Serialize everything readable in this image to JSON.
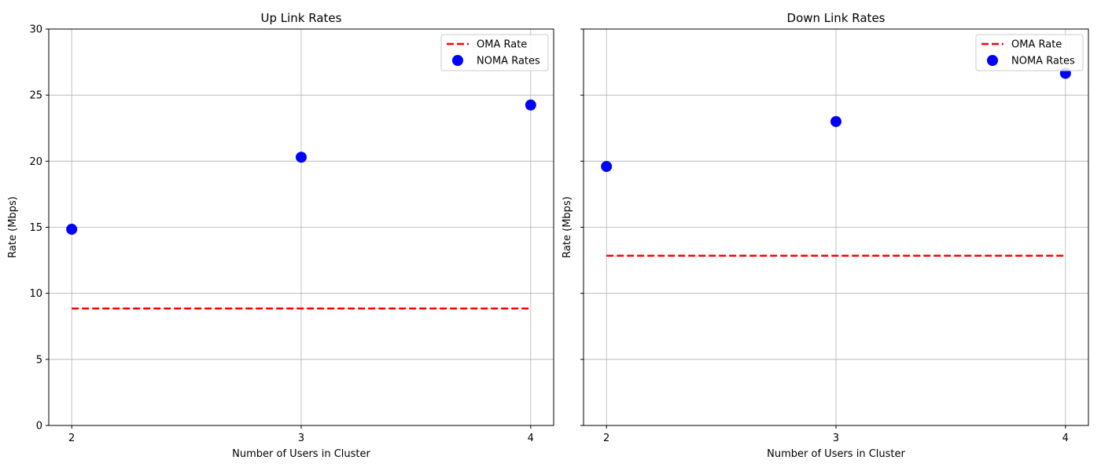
{
  "chart_data": [
    {
      "type": "scatter",
      "title": "Up Link Rates",
      "xlabel": "Number of Users in Cluster",
      "ylabel": "Rate (Mbps)",
      "xticks": [
        2,
        3,
        4
      ],
      "yticks": [
        0,
        5,
        10,
        15,
        20,
        25,
        30
      ],
      "ylim": [
        0,
        30
      ],
      "xlim": [
        1.9,
        4.1
      ],
      "grid": true,
      "legend_position": "top-right",
      "series": [
        {
          "name": "OMA Rate",
          "kind": "line",
          "style": "dashed",
          "color": "#ff0000",
          "x": [
            2,
            4
          ],
          "y": [
            8.85,
            8.85
          ]
        },
        {
          "name": "NOMA Rates",
          "kind": "scatter",
          "color": "#0000ff",
          "x": [
            2,
            3,
            4
          ],
          "y": [
            14.85,
            20.3,
            24.25
          ]
        }
      ]
    },
    {
      "type": "scatter",
      "title": "Down Link Rates",
      "xlabel": "Number of Users in Cluster",
      "ylabel": "Rate (Mbps)",
      "xticks": [
        2,
        3,
        4
      ],
      "yticks": [
        0,
        5,
        10,
        15,
        20,
        25,
        30
      ],
      "show_ytick_labels": false,
      "ylim": [
        0,
        30
      ],
      "xlim": [
        1.9,
        4.1
      ],
      "grid": true,
      "legend_position": "top-right",
      "series": [
        {
          "name": "OMA Rate",
          "kind": "line",
          "style": "dashed",
          "color": "#ff0000",
          "x": [
            2,
            4
          ],
          "y": [
            12.85,
            12.85
          ]
        },
        {
          "name": "NOMA Rates",
          "kind": "scatter",
          "color": "#0000ff",
          "x": [
            2,
            3,
            4
          ],
          "y": [
            19.6,
            23.0,
            26.65
          ]
        }
      ]
    }
  ]
}
